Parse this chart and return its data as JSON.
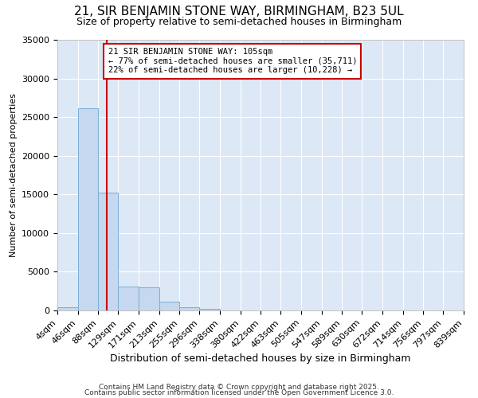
{
  "title": "21, SIR BENJAMIN STONE WAY, BIRMINGHAM, B23 5UL",
  "subtitle": "Size of property relative to semi-detached houses in Birmingham",
  "xlabel": "Distribution of semi-detached houses by size in Birmingham",
  "ylabel": "Number of semi-detached properties",
  "footer1": "Contains HM Land Registry data © Crown copyright and database right 2025.",
  "footer2": "Contains public sector information licensed under the Open Government Licence 3.0.",
  "bin_edges": [
    4,
    46,
    88,
    129,
    171,
    213,
    255,
    296,
    338,
    380,
    422,
    463,
    505,
    547,
    589,
    630,
    672,
    714,
    756,
    797,
    839
  ],
  "bin_labels": [
    "4sqm",
    "46sqm",
    "88sqm",
    "129sqm",
    "171sqm",
    "213sqm",
    "255sqm",
    "296sqm",
    "338sqm",
    "380sqm",
    "422sqm",
    "463sqm",
    "505sqm",
    "547sqm",
    "589sqm",
    "630sqm",
    "672sqm",
    "714sqm",
    "756sqm",
    "797sqm",
    "839sqm"
  ],
  "bar_heights": [
    400,
    26100,
    15200,
    3100,
    3000,
    1100,
    450,
    250,
    0,
    0,
    0,
    0,
    0,
    0,
    0,
    0,
    0,
    0,
    0,
    0
  ],
  "bar_color": "#c5d8f0",
  "bar_edge_color": "#7aafd4",
  "property_size": 105,
  "vline_color": "#cc0000",
  "annotation_text": "21 SIR BENJAMIN STONE WAY: 105sqm\n← 77% of semi-detached houses are smaller (35,711)\n22% of semi-detached houses are larger (10,228) →",
  "annotation_box_color": "#ffffff",
  "annotation_box_edge": "#cc0000",
  "ylim": [
    0,
    35000
  ],
  "fig_background": "#ffffff",
  "plot_background": "#dce8f5",
  "grid_color": "#ffffff",
  "title_fontsize": 11,
  "subtitle_fontsize": 9,
  "xlabel_fontsize": 9,
  "ylabel_fontsize": 8,
  "tick_fontsize": 8,
  "footer_fontsize": 6.5,
  "yticks": [
    0,
    5000,
    10000,
    15000,
    20000,
    25000,
    30000,
    35000
  ]
}
